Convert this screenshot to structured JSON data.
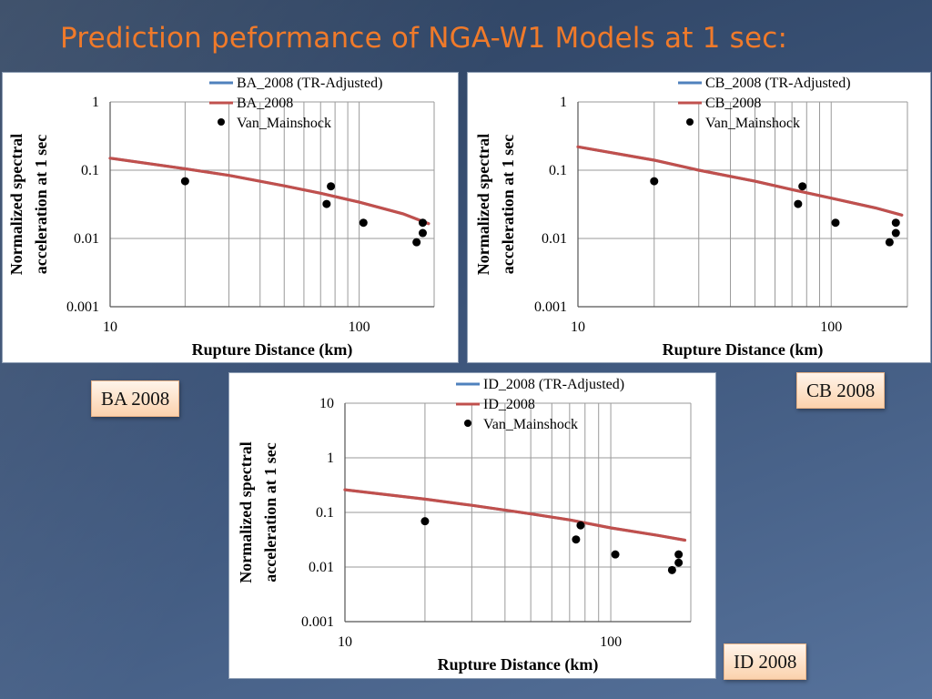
{
  "slide": {
    "title": "Prediction peformance of NGA-W1 Models at 1 sec:",
    "tags": [
      "BA 2008",
      "CB 2008",
      "ID 2008"
    ]
  },
  "colors": {
    "title": "#f07a2a",
    "adjusted": "#4f81bd",
    "model": "#c0504d",
    "points": "#000000"
  },
  "chart_data": [
    {
      "type": "line",
      "xlabel": "Rupture Distance (km)",
      "ylabel_lines": [
        "Normalized spectral",
        "acceleration  at 1 sec"
      ],
      "x_scale": "log",
      "y_scale": "log",
      "xlim": [
        10,
        200
      ],
      "ylim": [
        0.001,
        1
      ],
      "x_tick_labels": [
        "10",
        "100"
      ],
      "y_tick_labels": [
        "1",
        "0.1",
        "0.01",
        "0.001"
      ],
      "grid": "vertical",
      "legend_position": "top",
      "series": [
        {
          "name": "BA_2008 (TR-Adjusted)",
          "kind": "line",
          "x": [
            10,
            20,
            30,
            50,
            70,
            100,
            150,
            190
          ],
          "y": [
            0.15,
            0.105,
            0.084,
            0.059,
            0.046,
            0.034,
            0.023,
            0.0165
          ]
        },
        {
          "name": "BA_2008",
          "kind": "line",
          "x": [
            10,
            20,
            30,
            50,
            70,
            100,
            150,
            190
          ],
          "y": [
            0.15,
            0.105,
            0.084,
            0.059,
            0.046,
            0.034,
            0.023,
            0.0165
          ]
        },
        {
          "name": "Van_Mainshock",
          "kind": "scatter",
          "x": [
            20,
            74,
            77,
            104,
            170,
            180,
            180
          ],
          "y": [
            0.069,
            0.032,
            0.058,
            0.017,
            0.0088,
            0.012,
            0.017
          ]
        }
      ]
    },
    {
      "type": "line",
      "xlabel": "Rupture Distance (km)",
      "ylabel_lines": [
        "Normalized spectral",
        "acceleration  at 1 sec"
      ],
      "x_scale": "log",
      "y_scale": "log",
      "xlim": [
        10,
        200
      ],
      "ylim": [
        0.001,
        1
      ],
      "x_tick_labels": [
        "10",
        "100"
      ],
      "y_tick_labels": [
        "1",
        "0.1",
        "0.01",
        "0.001"
      ],
      "grid": "vertical",
      "legend_position": "top",
      "series": [
        {
          "name": "CB_2008 (TR-Adjusted)",
          "kind": "line",
          "x": [
            10,
            20,
            30,
            50,
            70,
            100,
            150,
            190
          ],
          "y": [
            0.22,
            0.14,
            0.1,
            0.069,
            0.052,
            0.039,
            0.028,
            0.022
          ]
        },
        {
          "name": "CB_2008",
          "kind": "line",
          "x": [
            10,
            20,
            30,
            50,
            70,
            100,
            150,
            190
          ],
          "y": [
            0.22,
            0.14,
            0.1,
            0.069,
            0.052,
            0.039,
            0.028,
            0.022
          ]
        },
        {
          "name": "Van_Mainshock",
          "kind": "scatter",
          "x": [
            20,
            74,
            77,
            104,
            170,
            180,
            180
          ],
          "y": [
            0.069,
            0.032,
            0.058,
            0.017,
            0.0088,
            0.012,
            0.017
          ]
        }
      ]
    },
    {
      "type": "line",
      "xlabel": "Rupture Distance (km)",
      "ylabel_lines": [
        "Normalized spectral",
        "acceleration  at 1 sec"
      ],
      "x_scale": "log",
      "y_scale": "log",
      "xlim": [
        10,
        200
      ],
      "ylim": [
        0.001,
        10
      ],
      "x_tick_labels": [
        "10",
        "100"
      ],
      "y_tick_labels": [
        "10",
        "1",
        "0.1",
        "0.01",
        "0.001"
      ],
      "grid": "vertical",
      "legend_position": "top",
      "series": [
        {
          "name": "ID_2008 (TR-Adjusted)",
          "kind": "line",
          "x": [
            10,
            20,
            30,
            50,
            70,
            100,
            150,
            190
          ],
          "y": [
            0.26,
            0.175,
            0.135,
            0.094,
            0.073,
            0.052,
            0.038,
            0.031
          ]
        },
        {
          "name": "ID_2008",
          "kind": "line",
          "x": [
            10,
            20,
            30,
            50,
            70,
            100,
            150,
            190
          ],
          "y": [
            0.26,
            0.175,
            0.135,
            0.094,
            0.073,
            0.052,
            0.038,
            0.031
          ]
        },
        {
          "name": "Van_Mainshock",
          "kind": "scatter",
          "x": [
            20,
            74,
            77,
            104,
            170,
            180,
            180
          ],
          "y": [
            0.069,
            0.032,
            0.058,
            0.017,
            0.0088,
            0.012,
            0.017
          ]
        }
      ]
    }
  ]
}
